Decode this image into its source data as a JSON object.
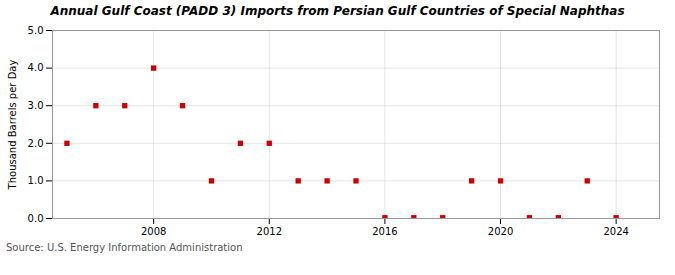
{
  "chart_data": {
    "type": "scatter",
    "title": "Annual Gulf Coast (PADD 3) Imports from Persian Gulf Countries of Special Naphthas",
    "ylabel": "Thousand Barrels per Day",
    "source": "Source: U.S. Energy Information Administration",
    "x": [
      2005,
      2006,
      2007,
      2008,
      2009,
      2010,
      2011,
      2012,
      2013,
      2014,
      2015,
      2016,
      2017,
      2018,
      2019,
      2020,
      2021,
      2022,
      2023,
      2024
    ],
    "values": [
      2.0,
      3.0,
      3.0,
      4.0,
      3.0,
      1.0,
      2.0,
      2.0,
      1.0,
      1.0,
      1.0,
      0.02,
      0.02,
      0.02,
      1.0,
      1.0,
      0.02,
      0.02,
      1.0,
      0.02
    ],
    "color": "#cc0000",
    "marker": "square",
    "xlim": [
      2004.5,
      2025.5
    ],
    "xticks": [
      2008,
      2012,
      2016,
      2020,
      2024
    ],
    "ylim": [
      0.0,
      5.0
    ],
    "yticks": [
      {
        "value": 0.0,
        "label": "0.0"
      },
      {
        "value": 1.0,
        "label": "1.0"
      },
      {
        "value": 2.0,
        "label": "2.0"
      },
      {
        "value": 3.0,
        "label": "3.0"
      },
      {
        "value": 4.0,
        "label": "4.0"
      },
      {
        "value": 5.0,
        "label": "5.0"
      }
    ],
    "grid": true
  }
}
